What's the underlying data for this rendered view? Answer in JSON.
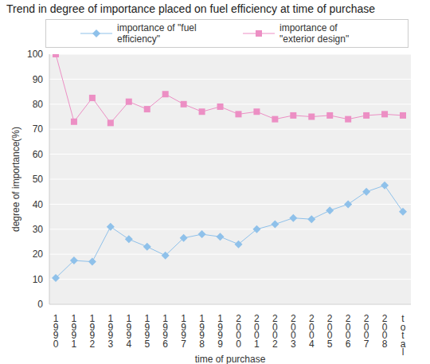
{
  "chart_data": {
    "type": "line",
    "title": "Trend in degree of importance placed on fuel efficiency at time of purchase",
    "x_label": "time of purchase",
    "y_label": "degree of importance(%)",
    "categories": [
      "1990",
      "1991",
      "1992",
      "1993",
      "1994",
      "1995",
      "1996",
      "1997",
      "1998",
      "1999",
      "2000",
      "2001",
      "2002",
      "2003",
      "2004",
      "2005",
      "2006",
      "2007",
      "2008",
      "total"
    ],
    "series": [
      {
        "name": "importance of \"fuel efficiency\"",
        "color": "#8fc1ea",
        "marker": "diamond",
        "values": [
          10.5,
          17.5,
          17,
          31,
          26,
          23,
          19.5,
          26.5,
          28,
          27,
          24,
          30,
          32,
          34.5,
          34,
          37.5,
          40,
          45,
          47.5,
          37
        ]
      },
      {
        "name": "importance of \"exterior design\"",
        "color": "#ec8fc4",
        "marker": "square",
        "values": [
          100,
          73,
          82.5,
          72.5,
          81,
          78,
          84,
          80,
          77,
          79,
          76,
          77,
          74,
          75.5,
          75,
          75.5,
          74,
          75.5,
          76,
          75.5
        ]
      }
    ],
    "ylim": [
      0,
      100
    ],
    "yticks": [
      0,
      10,
      20,
      30,
      40,
      50,
      60,
      70,
      80,
      90,
      100
    ],
    "grid": true,
    "legend": "top"
  }
}
